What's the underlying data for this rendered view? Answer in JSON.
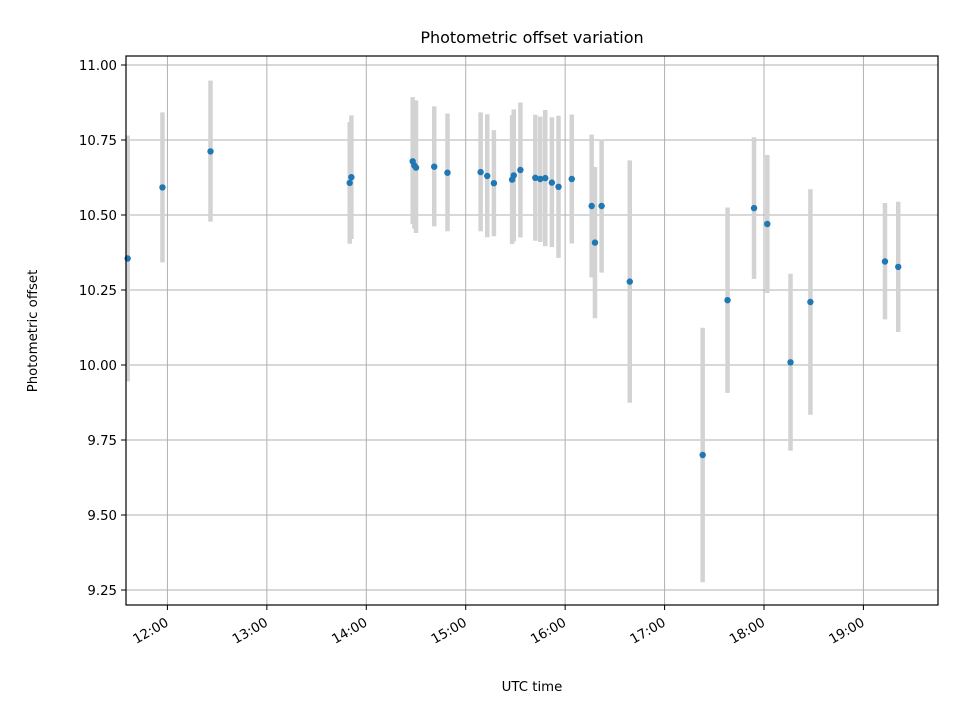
{
  "chart_data": {
    "type": "scatter",
    "title": "Photometric offset variation",
    "xlabel": "UTC time",
    "ylabel": "Photometric offset",
    "grid": true,
    "x_tick_labels": [
      "12:00",
      "13:00",
      "14:00",
      "15:00",
      "16:00",
      "17:00",
      "18:00",
      "19:00"
    ],
    "y_tick_labels": [
      "9.25",
      "9.50",
      "9.75",
      "10.00",
      "10.25",
      "10.50",
      "10.75",
      "11.00"
    ],
    "ylim": [
      9.2,
      11.03
    ],
    "xlim": [
      "11:35",
      "19:45"
    ],
    "colors": {
      "points": "#1f77b4",
      "errorbars": "#d3d3d3",
      "grid": "#b0b0b0"
    },
    "series": [
      {
        "points": [
          {
            "x": "11:36",
            "y": 10.355,
            "err_low": 9.945,
            "err_high": 10.765
          },
          {
            "x": "11:57",
            "y": 10.592,
            "err_low": 10.342,
            "err_high": 10.842
          },
          {
            "x": "12:26",
            "y": 10.712,
            "err_low": 10.478,
            "err_high": 10.948
          },
          {
            "x": "13:50",
            "y": 10.607,
            "err_low": 10.404,
            "err_high": 10.81
          },
          {
            "x": "13:51",
            "y": 10.626,
            "err_low": 10.42,
            "err_high": 10.832
          },
          {
            "x": "14:28",
            "y": 10.679,
            "err_low": 10.47,
            "err_high": 10.893
          },
          {
            "x": "14:29",
            "y": 10.665,
            "err_low": 10.455,
            "err_high": 10.875
          },
          {
            "x": "14:30",
            "y": 10.658,
            "err_low": 10.44,
            "err_high": 10.882
          },
          {
            "x": "14:41",
            "y": 10.661,
            "err_low": 10.462,
            "err_high": 10.862
          },
          {
            "x": "14:49",
            "y": 10.641,
            "err_low": 10.446,
            "err_high": 10.838
          },
          {
            "x": "15:09",
            "y": 10.643,
            "err_low": 10.446,
            "err_high": 10.842
          },
          {
            "x": "15:13",
            "y": 10.63,
            "err_low": 10.426,
            "err_high": 10.836
          },
          {
            "x": "15:17",
            "y": 10.606,
            "err_low": 10.429,
            "err_high": 10.783
          },
          {
            "x": "15:28",
            "y": 10.618,
            "err_low": 10.403,
            "err_high": 10.833
          },
          {
            "x": "15:29",
            "y": 10.632,
            "err_low": 10.412,
            "err_high": 10.852
          },
          {
            "x": "15:33",
            "y": 10.65,
            "err_low": 10.425,
            "err_high": 10.875
          },
          {
            "x": "15:42",
            "y": 10.624,
            "err_low": 10.414,
            "err_high": 10.834
          },
          {
            "x": "15:45",
            "y": 10.62,
            "err_low": 10.41,
            "err_high": 10.828
          },
          {
            "x": "15:48",
            "y": 10.623,
            "err_low": 10.396,
            "err_high": 10.85
          },
          {
            "x": "15:52",
            "y": 10.608,
            "err_low": 10.393,
            "err_high": 10.826
          },
          {
            "x": "15:56",
            "y": 10.594,
            "err_low": 10.357,
            "err_high": 10.831
          },
          {
            "x": "16:04",
            "y": 10.62,
            "err_low": 10.405,
            "err_high": 10.835
          },
          {
            "x": "16:16",
            "y": 10.53,
            "err_low": 10.292,
            "err_high": 10.768
          },
          {
            "x": "16:18",
            "y": 10.408,
            "err_low": 10.156,
            "err_high": 10.66
          },
          {
            "x": "16:22",
            "y": 10.53,
            "err_low": 10.308,
            "err_high": 10.752
          },
          {
            "x": "16:39",
            "y": 10.278,
            "err_low": 9.874,
            "err_high": 10.682
          },
          {
            "x": "17:23",
            "y": 9.7,
            "err_low": 9.276,
            "err_high": 10.124
          },
          {
            "x": "17:38",
            "y": 10.216,
            "err_low": 9.907,
            "err_high": 10.525
          },
          {
            "x": "17:54",
            "y": 10.523,
            "err_low": 10.287,
            "err_high": 10.759
          },
          {
            "x": "18:02",
            "y": 10.47,
            "err_low": 10.24,
            "err_high": 10.7
          },
          {
            "x": "18:16",
            "y": 10.009,
            "err_low": 9.714,
            "err_high": 10.304
          },
          {
            "x": "18:28",
            "y": 10.21,
            "err_low": 9.834,
            "err_high": 10.586
          },
          {
            "x": "19:13",
            "y": 10.345,
            "err_low": 10.152,
            "err_high": 10.54
          },
          {
            "x": "19:21",
            "y": 10.327,
            "err_low": 10.11,
            "err_high": 10.544
          }
        ]
      }
    ]
  }
}
